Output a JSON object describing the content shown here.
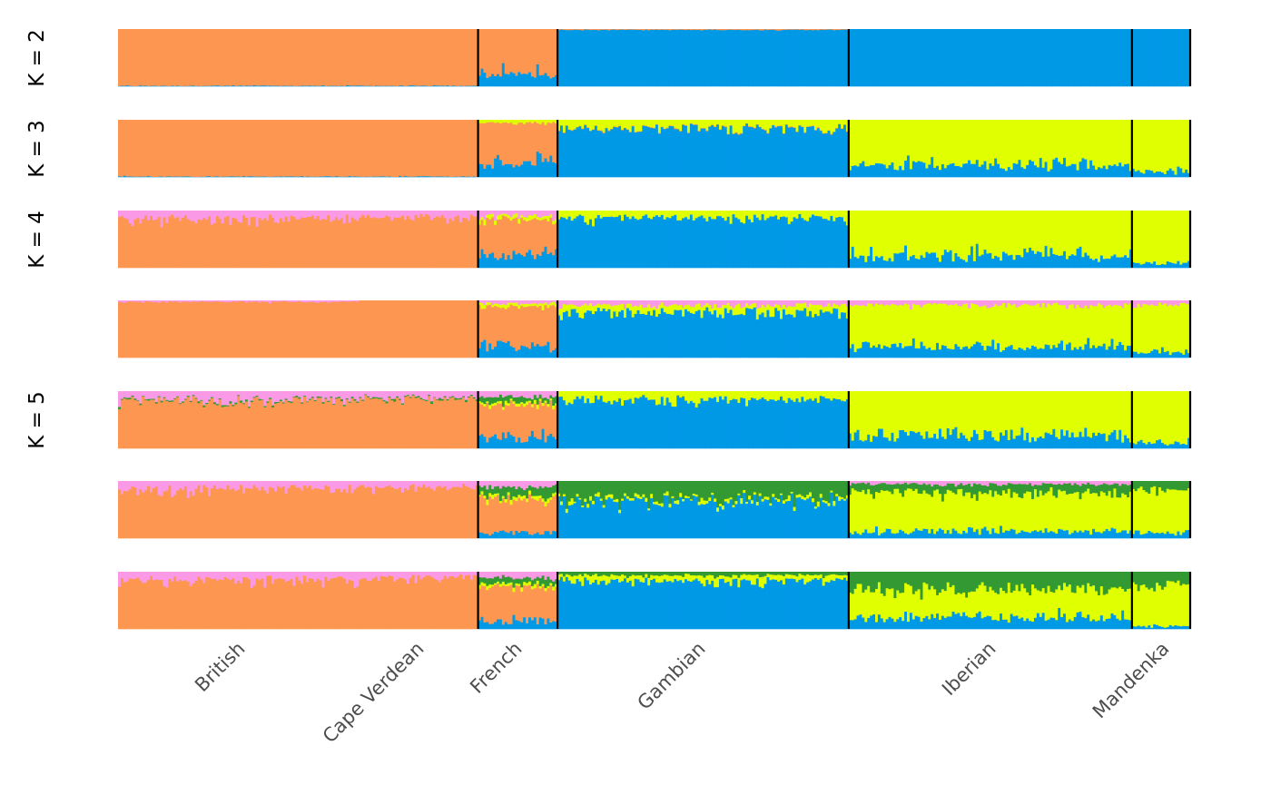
{
  "chart_data": {
    "type": "bar",
    "subtype": "stacked-admixture",
    "title": "",
    "xlabel": "",
    "ylabel": "",
    "ylim": [
      0,
      1
    ],
    "grid": false,
    "legend": "none",
    "row_labels": [
      "K = 2",
      "K = 3",
      "K = 4",
      "K = 5"
    ],
    "populations": [
      {
        "name": "British",
        "n": 91
      },
      {
        "name": "Cape Verdean",
        "n": 45
      },
      {
        "name": "French",
        "n": 30
      },
      {
        "name": "Gambian",
        "n": 110
      },
      {
        "name": "Iberian",
        "n": 107
      },
      {
        "name": "Mandenka",
        "n": 22
      }
    ],
    "clusters": [
      {
        "name": "orange",
        "color": "#FC9650"
      },
      {
        "name": "blue",
        "color": "#0099E6"
      },
      {
        "name": "yellow",
        "color": "#E0FF00"
      },
      {
        "name": "pink",
        "color": "#FA9AE6"
      },
      {
        "name": "green",
        "color": "#339933"
      }
    ],
    "panels": [
      {
        "K": 2,
        "label": "K = 2",
        "mean_proportions": {
          "British": {
            "orange": 0.99,
            "blue": 0.01
          },
          "Cape Verdean": {
            "orange": 0.99,
            "blue": 0.01
          },
          "French": {
            "orange": 0.78,
            "blue": 0.22
          },
          "Gambian": {
            "orange": 0.01,
            "blue": 0.99
          },
          "Iberian": {
            "orange": 0.0,
            "blue": 1.0
          },
          "Mandenka": {
            "orange": 0.0,
            "blue": 1.0
          }
        }
      },
      {
        "K": 3,
        "label": "K = 3",
        "mean_proportions": {
          "British": {
            "orange": 0.99,
            "blue": 0.01
          },
          "Cape Verdean": {
            "orange": 0.99,
            "blue": 0.01
          },
          "French": {
            "orange": 0.7,
            "blue": 0.25,
            "yellow": 0.05
          },
          "Gambian": {
            "orange": 0.01,
            "blue": 0.86,
            "yellow": 0.13
          },
          "Iberian": {
            "blue": 0.22,
            "yellow": 0.78
          },
          "Mandenka": {
            "blue": 0.1,
            "yellow": 0.9
          }
        }
      },
      {
        "K": 4,
        "label": "K = 4",
        "mean_proportions": {
          "British": {
            "orange": 0.86,
            "pink": 0.14
          },
          "Cape Verdean": {
            "orange": 0.88,
            "pink": 0.12
          },
          "French": {
            "orange": 0.62,
            "blue": 0.22,
            "yellow": 0.06,
            "pink": 0.1
          },
          "Gambian": {
            "blue": 0.87,
            "yellow": 0.13
          },
          "Iberian": {
            "blue": 0.22,
            "yellow": 0.78
          },
          "Mandenka": {
            "blue": 0.1,
            "yellow": 0.9
          }
        }
      },
      {
        "K": 4,
        "label": "",
        "mean_proportions": {
          "British": {
            "orange": 0.98,
            "pink": 0.02
          },
          "Cape Verdean": {
            "orange": 1.0
          },
          "French": {
            "orange": 0.7,
            "blue": 0.2,
            "yellow": 0.05,
            "pink": 0.05
          },
          "Gambian": {
            "blue": 0.8,
            "yellow": 0.12,
            "pink": 0.08
          },
          "Iberian": {
            "blue": 0.2,
            "yellow": 0.72,
            "pink": 0.08
          },
          "Mandenka": {
            "blue": 0.1,
            "yellow": 0.83,
            "pink": 0.07
          }
        }
      },
      {
        "K": 5,
        "label": "K = 5",
        "mean_proportions": {
          "British": {
            "orange": 0.84,
            "pink": 0.14,
            "green": 0.02
          },
          "Cape Verdean": {
            "orange": 0.88,
            "pink": 0.1,
            "green": 0.02
          },
          "French": {
            "orange": 0.55,
            "blue": 0.2,
            "yellow": 0.05,
            "pink": 0.1,
            "green": 0.1
          },
          "Gambian": {
            "blue": 0.86,
            "yellow": 0.14
          },
          "Iberian": {
            "blue": 0.22,
            "yellow": 0.78
          },
          "Mandenka": {
            "blue": 0.1,
            "yellow": 0.9
          }
        }
      },
      {
        "K": 5,
        "label": "",
        "mean_proportions": {
          "British": {
            "orange": 0.86,
            "pink": 0.14
          },
          "Cape Verdean": {
            "orange": 0.9,
            "pink": 0.1
          },
          "French": {
            "orange": 0.6,
            "blue": 0.1,
            "yellow": 0.05,
            "pink": 0.1,
            "green": 0.15
          },
          "Gambian": {
            "blue": 0.65,
            "yellow": 0.05,
            "green": 0.3
          },
          "Iberian": {
            "blue": 0.12,
            "yellow": 0.68,
            "green": 0.15,
            "pink": 0.05
          },
          "Mandenka": {
            "blue": 0.1,
            "yellow": 0.75,
            "green": 0.15
          }
        }
      },
      {
        "K": 5,
        "label": "",
        "mean_proportions": {
          "British": {
            "orange": 0.86,
            "pink": 0.14
          },
          "Cape Verdean": {
            "orange": 0.9,
            "pink": 0.1
          },
          "French": {
            "orange": 0.6,
            "blue": 0.15,
            "yellow": 0.05,
            "pink": 0.1,
            "green": 0.1
          },
          "Gambian": {
            "blue": 0.84,
            "yellow": 0.1,
            "green": 0.06
          },
          "Iberian": {
            "blue": 0.2,
            "yellow": 0.5,
            "green": 0.3
          },
          "Mandenka": {
            "blue": 0.05,
            "yellow": 0.7,
            "green": 0.25
          }
        }
      }
    ]
  }
}
